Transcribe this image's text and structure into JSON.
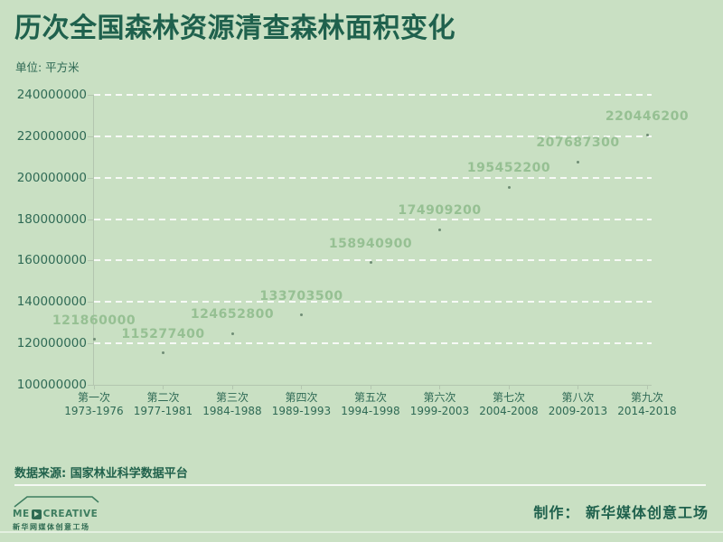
{
  "header": {
    "title": "历次全国森林资源清查森林面积变化",
    "unit_label": "单位: 平方米"
  },
  "chart_data": {
    "type": "scatter",
    "title": "历次全国森林资源清查森林面积变化",
    "unit": "平方米",
    "categories": [
      "第一次",
      "第二次",
      "第三次",
      "第四次",
      "第五次",
      "第六次",
      "第七次",
      "第八次",
      "第九次"
    ],
    "category_sublabels": [
      "1973-1976",
      "1977-1981",
      "1984-1988",
      "1989-1993",
      "1994-1998",
      "1999-2003",
      "2004-2008",
      "2009-2013",
      "2014-2018"
    ],
    "values": [
      121860000,
      115277400,
      124652800,
      133703500,
      158940900,
      174909200,
      195452200,
      207687300,
      220446200
    ],
    "point_labels": [
      "121860000",
      "115277400",
      "124652800",
      "133703500",
      "158940900",
      "174909200",
      "195452200",
      "207687300",
      "220446200"
    ],
    "xlabel": "",
    "ylabel": "",
    "ylim": [
      100000000,
      240000000
    ],
    "yticks": [
      100000000,
      120000000,
      140000000,
      160000000,
      180000000,
      200000000,
      220000000,
      240000000
    ],
    "grid": "horizontal-dashed",
    "legend": "none",
    "marker": "small-dot"
  },
  "footer": {
    "source_label": "数据来源: 国家林业科学数据平台",
    "credit_label": "制作： 新华媒体创意工场"
  },
  "logo": {
    "brand_prefix": "ME",
    "brand_suffix": "CREATIVE",
    "subtext": "新华网媒体创意工场"
  },
  "colors": {
    "background": "#c9e0c3",
    "title_text": "#1f614d",
    "axis_text": "#2f6a55",
    "point_label_text": "#96c093",
    "gridline": "rgba(255,255,255,0.85)",
    "axis_line": "#b3c6af",
    "marker": "#6f8d75"
  }
}
